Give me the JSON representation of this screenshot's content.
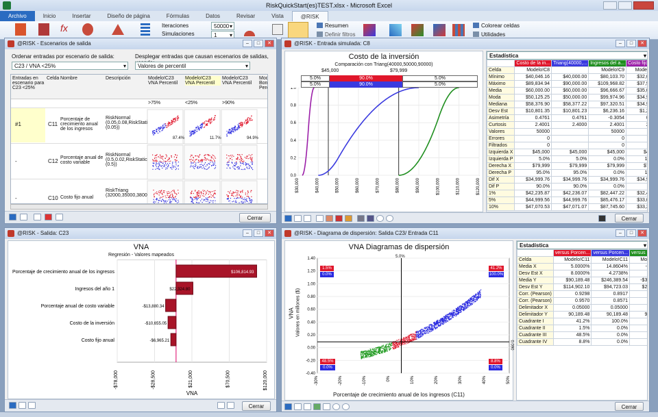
{
  "title_bar": {
    "title": "RiskQuickStart(es)TEST.xlsx - Microsoft Excel"
  },
  "ribbon": {
    "tabs": [
      "Archivo",
      "Inicio",
      "Insertar",
      "Diseño de página",
      "Fórmulas",
      "Datos",
      "Revisar",
      "Vista",
      "@RISK"
    ],
    "iterations_label": "Iteraciones",
    "iterations_value": "50000",
    "simulations_label": "Simulaciones",
    "simulations_value": "1",
    "resumen": "Resumen",
    "definir_filtros": "Definir filtros",
    "colorear": "Colorear celdas",
    "utilidades": "Utilidades"
  },
  "scenarios": {
    "title": "@RISK - Escenarios de salida",
    "sort_label": "Ordenar entradas por escenario de salida:",
    "sort_value": "C23 / VNA <25%",
    "display_label": "Desplegar entradas que causan escenarios de salidas, usando:",
    "display_value": "Valores de percentil",
    "headers": [
      "Entradas en escenario para C23 <25%",
      "Celda",
      "Nombre",
      "Descripción",
      "Modelo!C23 VNA Percentil",
      "Modelo!C23 VNA Percentil",
      "Modelo!C23 VNA Percentil",
      "Mod Boni Perc"
    ],
    "conditions": [
      ">75%",
      "<25%",
      ">90%"
    ],
    "rows": [
      {
        "idx": "#1",
        "cell": "C11",
        "name": "Porcentaje de crecimiento anual de los ingresos",
        "desc": "RiskNormal (0.05,0.08,RiskStati (0.05))",
        "pcts": [
          "87.4%",
          "11.7%",
          "94.9%"
        ]
      },
      {
        "idx": "-",
        "cell": "C12",
        "name": "Porcentaje anual de costo variable",
        "desc": "RiskNormal (0.5,0.02,RiskStatic (0.5))",
        "pcts": [
          "",
          "",
          ""
        ]
      },
      {
        "idx": "-",
        "cell": "C10",
        "name": "Costo fijo anual",
        "desc": "RiskTriang (32000,35000,3800",
        "pcts": [
          "",
          "",
          ""
        ]
      }
    ],
    "close": "Cerrar"
  },
  "input_window": {
    "title": "@RISK - Entrada simulada: C8",
    "chart_title": "Costo de la inversión",
    "chart_subtitle": "Comparación con Triang(40000,50000,90000)",
    "left_marker": "$45,000",
    "right_marker": "$79,999",
    "band_top": [
      "5.0%",
      "90.0%",
      "5.0%"
    ],
    "band_bottom": [
      "5.0%",
      "90.0%",
      "5.0%"
    ],
    "close": "Cerrar"
  },
  "stats1": {
    "title": "Estadística",
    "cols": [
      "Costo de la in...",
      "Triang(40000,...",
      "Ingresos del a...",
      "Costo fijo anual"
    ],
    "col_colors": [
      "#e0162b",
      "#3a3adf",
      "#1f8f1f",
      "#9b1fa8"
    ],
    "rows": [
      [
        "Celda",
        "Modelo!C8",
        "",
        "Modelo!C9",
        "Modelo!C10"
      ],
      [
        "Mínimo",
        "$40,046.16",
        "$40,000.00",
        "$80,103.70",
        "$32,018.80"
      ],
      [
        "Máximo",
        "$89,834.94",
        "$90,000.00",
        "$109,968.82",
        "$37,997.10"
      ],
      [
        "Media",
        "$60,000.00",
        "$60,000.00",
        "$96,666.67",
        "$35,000.00"
      ],
      [
        "Moda",
        "$50,125.25",
        "$50,000.00",
        "$99,974.96",
        "$34,984.95"
      ],
      [
        "Mediana",
        "$58,376.90",
        "$58,377.22",
        "$97,320.51",
        "$34,999.94"
      ],
      [
        "Desv Est",
        "$10,801.35",
        "$10,801.23",
        "$6,236.16",
        "$1,224.76"
      ],
      [
        "Asimetría",
        "0.4761",
        "0.4761",
        "-0.3054",
        "0.0000"
      ],
      [
        "Curtosis",
        "2.4001",
        "2.4000",
        "2.4001",
        "2.4001"
      ],
      [
        "Valores",
        "50000",
        "",
        "50000",
        "50000"
      ],
      [
        "Errores",
        "0",
        "",
        "0",
        "0"
      ],
      [
        "Filtrados",
        "0",
        "",
        "0",
        "0"
      ],
      [
        "Izquierda X",
        "$45,000",
        "$45,000",
        "$45,000",
        "$45,000"
      ],
      [
        "Izquierda P",
        "5.0%",
        "5.0%",
        "0.0%",
        "100.0%"
      ],
      [
        "Derecha X",
        "$79,999",
        "$79,999",
        "$79,999",
        "$79,999"
      ],
      [
        "Derecha P",
        "95.0%",
        "95.0%",
        "0.0%",
        "100.0%"
      ],
      [
        "Dif X",
        "$34,999.76",
        "$34,999.76",
        "$34,999.76",
        "$34,999.76"
      ],
      [
        "Dif P",
        "90.0%",
        "90.0%",
        "0.0%",
        "0.0%"
      ],
      [
        "1%",
        "$42,235.87",
        "$42,236.07",
        "$82,447.22",
        "$32,424.15"
      ],
      [
        "5%",
        "$44,999.56",
        "$44,999.76",
        "$85,476.17",
        "$33,000.38"
      ],
      [
        "10%",
        "$47,070.53",
        "$47,071.07",
        "$87,745.60",
        "$33,341.51"
      ]
    ]
  },
  "output_window": {
    "title": "@RISK - Salida: C23",
    "chart_title": "VNA",
    "chart_subtitle": "Regresión - Valores mapeados",
    "xlabel": "VNA",
    "close": "Cerrar"
  },
  "scatter_window": {
    "title": "@RISK - Diagrama de dispersión: Salida C23/ Entrada C11",
    "chart_title": "VNA Diagramas de dispersión",
    "xlabel": "Porcentaje de crecimiento anual de los ingresos (C11)",
    "ylabel": "VNA",
    "ylabel2": "Valores en millones ($)",
    "top_marker": "5.0%",
    "right_marker": "0.090",
    "quad_tl": [
      "1.5%",
      "0.0%"
    ],
    "quad_tr": [
      "41.2%",
      "100.0%"
    ],
    "quad_bl": [
      "48.5%",
      "0.0%"
    ],
    "quad_br": [
      "8.8%",
      "0.0%"
    ],
    "close": "Cerrar"
  },
  "stats2": {
    "title": "Estadística",
    "cols": [
      "versus Porcen...",
      "versus Porcen...",
      "versus Porcen..."
    ],
    "col_colors": [
      "#e0162b",
      "#3a3adf",
      "#1f8f1f"
    ],
    "rows": [
      [
        "Celda",
        "Modelo!C11",
        "Modelo!C11",
        "Modelo!C11"
      ],
      [
        "Media X",
        "5.0000%",
        "14.8604%",
        "-4.6868%"
      ],
      [
        "Desv Est X",
        "8.0000%",
        "4.2738%",
        "4.4767%"
      ],
      [
        "Media Y",
        "$90,189.48",
        "$246,389.54",
        "-$31,789.33"
      ],
      [
        "Desv Est Y",
        "$114,902.10",
        "$94,723.03",
        "$29,861.60"
      ],
      [
        "Corr. (Pearson)",
        "0.9298",
        "0.8917",
        "0.7850"
      ],
      [
        "Corr. (Pearson)",
        "0.9570",
        "0.8571",
        "0.7449"
      ],
      [
        "Delimitador X",
        "0.05000",
        "0.05000",
        "0.05000"
      ],
      [
        "Delimitador Y",
        "90,189.48",
        "90,189.48",
        "90,189.48"
      ],
      [
        "Cuadrante I",
        "41.2%",
        "100.0%",
        "0.0%"
      ],
      [
        "Cuadrante II",
        "1.5%",
        "0.0%",
        "0.0%"
      ],
      [
        "Cuadrante III",
        "48.5%",
        "0.0%",
        "99.8%"
      ],
      [
        "Cuadrante IV",
        "8.8%",
        "0.0%",
        "0.2%"
      ]
    ]
  },
  "chart_data": [
    {
      "type": "bar",
      "title": "VNA",
      "subtitle": "Regresión - Valores mapeados",
      "xlabel": "VNA",
      "categories": [
        "Porcentaje de crecimiento anual de los ingresos",
        "Ingresos del año 1",
        "Porcentaje anual de costo variable",
        "Costo de la inversión",
        "Costo fijo anual"
      ],
      "values": [
        106814.93,
        22324.8,
        -13880.34,
        -10655.05,
        -6965.21
      ],
      "value_labels": [
        "$106,814.93",
        "$22,324.80",
        "-$13,880.34",
        "-$10,655.05",
        "-$6,965.21"
      ],
      "xticks": [
        "-$78,000",
        "-$28,500",
        "$21,000",
        "$70,500",
        "$120,000"
      ],
      "xlim": [
        -78000,
        120000
      ],
      "baseline": 0
    },
    {
      "type": "line",
      "title": "Costo de la inversión",
      "subtitle": "Comparación con Triang(40000,50000,90000)",
      "xticks": [
        "$30,000",
        "$40,000",
        "$50,000",
        "$60,000",
        "$70,000",
        "$80,000",
        "$90,000",
        "$100,000",
        "$110,000",
        "$120,000"
      ],
      "yticks": [
        "0.0",
        "0.2",
        "0.4",
        "0.6",
        "0.8",
        "1.0"
      ],
      "series": [
        {
          "name": "Costo de la inversión",
          "color": "#3a3adf"
        },
        {
          "name": "Costo fijo anual",
          "color": "#9b1fa8"
        },
        {
          "name": "Ingresos del año 1",
          "color": "#1f8f1f"
        }
      ]
    },
    {
      "type": "scatter",
      "title": "VNA Diagramas de dispersión",
      "xticks": [
        "-30%",
        "-20%",
        "-10%",
        "0%",
        "10%",
        "20%",
        "30%",
        "40%",
        "50%"
      ],
      "yticks": [
        "-0.40",
        "-0.20",
        "0.00",
        "0.20",
        "0.40",
        "0.60",
        "0.80",
        "1.00",
        "1.20",
        "1.40"
      ]
    }
  ]
}
